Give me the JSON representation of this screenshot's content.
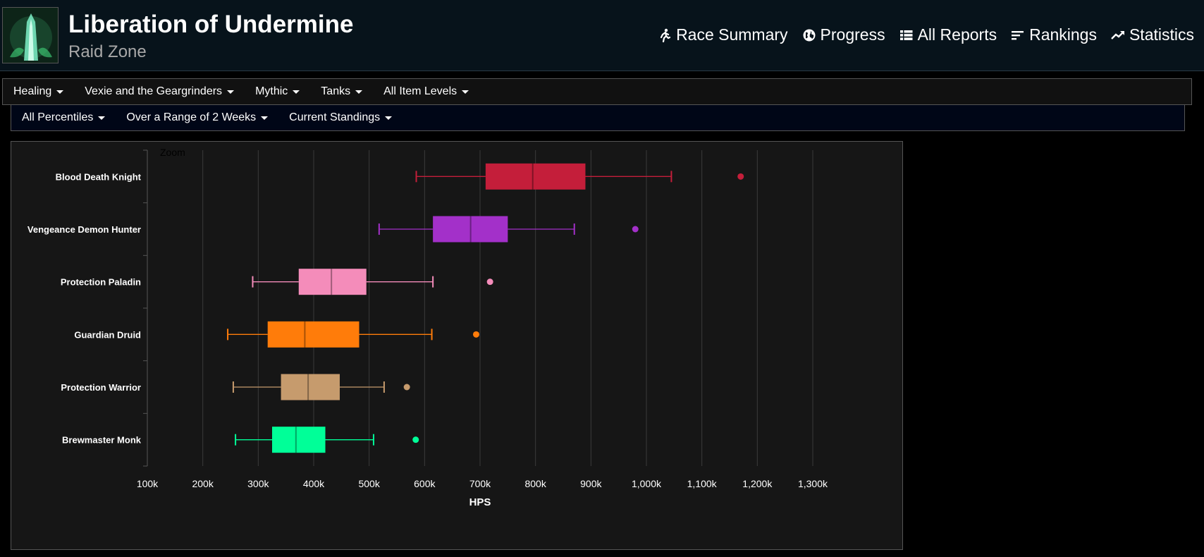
{
  "header": {
    "title": "Liberation of Undermine",
    "subtitle": "Raid Zone",
    "nav": [
      {
        "label": "Race Summary",
        "icon": "runner-icon"
      },
      {
        "label": "Progress",
        "icon": "globe-icon"
      },
      {
        "label": "All Reports",
        "icon": "list-icon"
      },
      {
        "label": "Rankings",
        "icon": "rankings-icon"
      },
      {
        "label": "Statistics",
        "icon": "trend-icon"
      }
    ]
  },
  "filters": {
    "row1": [
      "Healing",
      "Vexie and the Geargrinders",
      "Mythic",
      "Tanks",
      "All Item Levels"
    ],
    "row2": [
      "All Percentiles",
      "Over a Range of 2 Weeks",
      "Current Standings"
    ]
  },
  "chart_data": {
    "type": "boxplot",
    "orientation": "horizontal",
    "zoom_label": "Zoom",
    "xlabel": "HPS",
    "xlim": [
      100000,
      1300000
    ],
    "xticks": [
      {
        "value": 100000,
        "label": "100k"
      },
      {
        "value": 200000,
        "label": "200k"
      },
      {
        "value": 300000,
        "label": "300k"
      },
      {
        "value": 400000,
        "label": "400k"
      },
      {
        "value": 500000,
        "label": "500k"
      },
      {
        "value": 600000,
        "label": "600k"
      },
      {
        "value": 700000,
        "label": "700k"
      },
      {
        "value": 800000,
        "label": "800k"
      },
      {
        "value": 900000,
        "label": "900k"
      },
      {
        "value": 1000000,
        "label": "1,000k"
      },
      {
        "value": 1100000,
        "label": "1,100k"
      },
      {
        "value": 1200000,
        "label": "1,200k"
      },
      {
        "value": 1300000,
        "label": "1,300k"
      }
    ],
    "grid": true,
    "series": [
      {
        "name": "Blood Death Knight",
        "color": "#C41E3A",
        "min": 585000,
        "q1": 710000,
        "median": 795000,
        "q3": 890000,
        "max": 1045000,
        "outlier": 1170000
      },
      {
        "name": "Vengeance Demon Hunter",
        "color": "#A330C9",
        "min": 518000,
        "q1": 615000,
        "median": 683000,
        "q3": 750000,
        "max": 870000,
        "outlier": 980000
      },
      {
        "name": "Protection Paladin",
        "color": "#F48CBA",
        "min": 290000,
        "q1": 373000,
        "median": 432000,
        "q3": 495000,
        "max": 615000,
        "outlier": 718000
      },
      {
        "name": "Guardian Druid",
        "color": "#FF7C0A",
        "min": 245000,
        "q1": 317000,
        "median": 384000,
        "q3": 482000,
        "max": 613000,
        "outlier": 693000
      },
      {
        "name": "Protection Warrior",
        "color": "#C69B6D",
        "min": 255000,
        "q1": 341000,
        "median": 390000,
        "q3": 447000,
        "max": 527000,
        "outlier": 568000
      },
      {
        "name": "Brewmaster Monk",
        "color": "#00FF98",
        "min": 259000,
        "q1": 325000,
        "median": 368000,
        "q3": 421000,
        "max": 508000,
        "outlier": 584000
      }
    ]
  }
}
